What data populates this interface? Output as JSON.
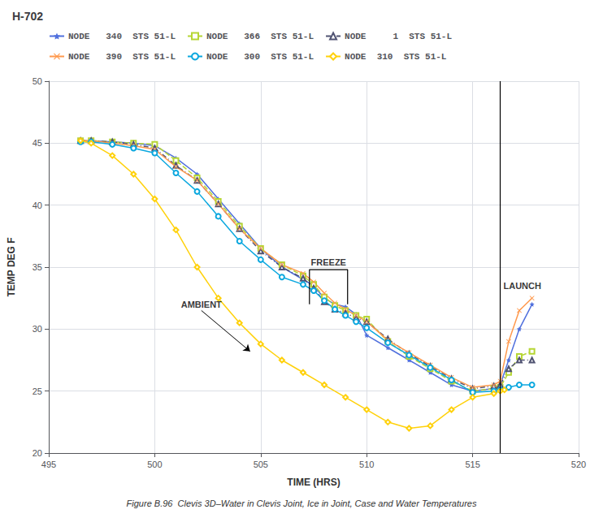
{
  "chart_data": {
    "type": "line",
    "title": "H-702",
    "xlabel": "TIME (HRS)",
    "ylabel": "TEMP DEG F",
    "caption": "Figure B.96  Clevis 3D–Water in Clevis Joint, Ice in Joint, Case and Water Temperatures",
    "xlim": [
      495,
      520
    ],
    "ylim": [
      20,
      50
    ],
    "xticks": [
      495,
      500,
      505,
      510,
      515,
      520
    ],
    "yticks": [
      20,
      25,
      30,
      35,
      40,
      45,
      50
    ],
    "grid": true,
    "legend": "upper left",
    "series": [
      {
        "name": "NODE   340  STS 51-L",
        "marker": "star",
        "line_style": "solid",
        "x": [
          496.5,
          497.0,
          498.0,
          499.0,
          500.0,
          501.0,
          502.0,
          503.0,
          504.0,
          505.0,
          506.0,
          507.0,
          507.5,
          508.0,
          508.5,
          509.0,
          509.5,
          510.0,
          511.0,
          512.0,
          513.0,
          514.0,
          515.0,
          516.0,
          516.3,
          516.7,
          517.2,
          517.8
        ],
        "values": [
          45.2,
          45.2,
          45.1,
          45.0,
          44.8,
          43.8,
          42.5,
          40.5,
          38.5,
          36.5,
          35.0,
          34.0,
          33.5,
          32.5,
          32.0,
          31.8,
          31.2,
          29.5,
          28.5,
          27.5,
          26.5,
          25.5,
          25.0,
          25.2,
          25.5,
          27.5,
          30.0,
          32.0
        ]
      },
      {
        "name": "NODE   366  STS 51-L",
        "marker": "square",
        "line_style": "dashed",
        "x": [
          496.5,
          497.0,
          498.0,
          499.0,
          500.0,
          501.0,
          502.0,
          503.0,
          504.0,
          505.0,
          506.0,
          507.0,
          507.5,
          508.0,
          508.5,
          509.0,
          509.5,
          510.0,
          511.0,
          512.0,
          513.0,
          514.0,
          515.0,
          516.0,
          516.3,
          516.7,
          517.2,
          517.8
        ],
        "values": [
          45.2,
          45.2,
          45.1,
          45.0,
          44.9,
          43.6,
          42.2,
          40.3,
          38.3,
          36.5,
          35.2,
          34.3,
          33.6,
          32.6,
          31.9,
          31.5,
          31.1,
          30.8,
          29.0,
          27.8,
          26.8,
          25.8,
          25.0,
          25.2,
          25.3,
          26.5,
          27.8,
          28.2
        ]
      },
      {
        "name": "NODE     1  STS 51-L",
        "marker": "triangle",
        "line_style": "dashdot",
        "x": [
          496.5,
          497.0,
          498.0,
          499.0,
          500.0,
          501.0,
          502.0,
          503.0,
          504.0,
          505.0,
          506.0,
          507.0,
          507.5,
          508.0,
          508.5,
          509.0,
          509.5,
          510.0,
          511.0,
          512.0,
          513.0,
          514.0,
          515.0,
          516.0,
          516.3,
          516.7,
          517.2,
          517.8
        ],
        "values": [
          45.2,
          45.2,
          45.1,
          44.9,
          44.6,
          43.2,
          42.0,
          40.1,
          38.1,
          36.3,
          35.0,
          34.1,
          33.3,
          32.2,
          31.6,
          31.3,
          30.9,
          30.6,
          29.2,
          28.0,
          27.0,
          26.0,
          25.2,
          25.4,
          25.5,
          26.8,
          27.5,
          27.5
        ]
      },
      {
        "name": "NODE   390  STS 51-L",
        "marker": "x",
        "line_style": "solid",
        "x": [
          496.5,
          497.0,
          498.0,
          499.0,
          500.0,
          501.0,
          502.0,
          503.0,
          504.0,
          505.0,
          506.0,
          507.0,
          507.5,
          508.0,
          508.5,
          509.0,
          509.5,
          510.0,
          511.0,
          512.0,
          513.0,
          514.0,
          515.0,
          516.0,
          516.3,
          516.7,
          517.2,
          517.8
        ],
        "values": [
          45.2,
          45.2,
          45.0,
          44.8,
          44.5,
          43.1,
          42.0,
          40.1,
          38.1,
          36.5,
          35.2,
          34.5,
          33.8,
          32.9,
          32.1,
          31.6,
          31.1,
          30.6,
          29.1,
          28.1,
          27.1,
          26.1,
          25.3,
          25.5,
          25.8,
          29.0,
          31.5,
          32.5
        ]
      },
      {
        "name": "NODE   300  STS 51-L",
        "marker": "circle",
        "line_style": "solid",
        "x": [
          496.5,
          497.0,
          498.0,
          499.0,
          500.0,
          501.0,
          502.0,
          503.0,
          504.0,
          505.0,
          506.0,
          507.0,
          507.5,
          508.0,
          508.5,
          509.0,
          509.5,
          510.0,
          511.0,
          512.0,
          513.0,
          514.0,
          515.0,
          516.0,
          516.3,
          516.7,
          517.2,
          517.8
        ],
        "values": [
          45.1,
          45.1,
          44.9,
          44.6,
          44.2,
          42.6,
          41.1,
          39.1,
          37.1,
          35.6,
          34.2,
          33.6,
          33.1,
          32.3,
          31.6,
          31.1,
          30.6,
          30.1,
          28.9,
          27.9,
          26.9,
          25.9,
          24.9,
          25.0,
          25.1,
          25.3,
          25.5,
          25.5
        ]
      },
      {
        "name": "NODE  310  STS 51-L",
        "marker": "diamond",
        "line_style": "solid",
        "x": [
          496.5,
          497.0,
          498.0,
          499.0,
          500.0,
          501.0,
          502.0,
          503.0,
          504.0,
          505.0,
          506.0,
          507.0,
          508.0,
          509.0,
          510.0,
          511.0,
          512.0,
          513.0,
          514.0,
          515.0,
          516.0,
          516.3,
          516.5
        ],
        "values": [
          45.2,
          45.0,
          44.0,
          42.5,
          40.5,
          38.0,
          35.0,
          32.5,
          30.5,
          28.8,
          27.5,
          26.5,
          25.5,
          24.5,
          23.5,
          22.5,
          22.0,
          22.2,
          23.5,
          24.5,
          24.8,
          25.0,
          25.1
        ]
      }
    ],
    "annotations": [
      {
        "type": "bracket",
        "text": "FREEZE",
        "x": [
          507.3,
          509.1
        ],
        "y": [
          32.0,
          34.8
        ]
      },
      {
        "type": "vline",
        "text": "LAUNCH",
        "x": 516.3,
        "text_y": 33.5
      },
      {
        "type": "arrow",
        "text": "AMBIENT",
        "x": 504.5,
        "y": 28.2,
        "text_x": 502.2,
        "text_y": 31.5
      }
    ]
  }
}
